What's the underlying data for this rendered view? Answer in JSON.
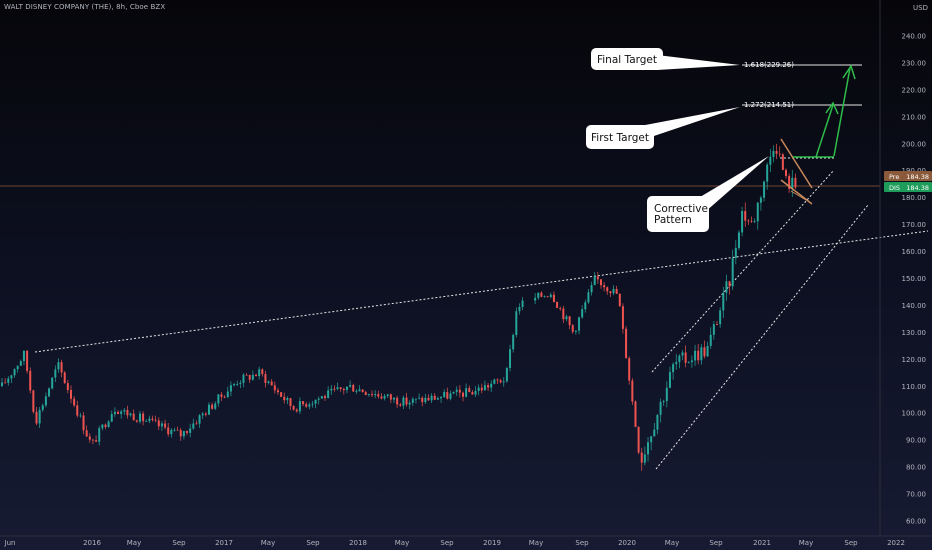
{
  "header": {
    "title": "WALT DISNEY COMPANY (THE), 8h, Cboe BZX"
  },
  "y_axis": {
    "currency": "USD",
    "ticks": [
      "240.00",
      "230.00",
      "220.00",
      "210.00",
      "200.00",
      "190.00",
      "180.00",
      "170.00",
      "160.00",
      "150.00",
      "140.00",
      "130.00",
      "120.00",
      "110.00",
      "100.00",
      "90.00",
      "80.00",
      "70.00",
      "60.00"
    ]
  },
  "x_axis": {
    "ticks": [
      "Jun",
      "2016",
      "May",
      "Sep",
      "2017",
      "May",
      "Sep",
      "2018",
      "May",
      "Sep",
      "2019",
      "May",
      "Sep",
      "2020",
      "May",
      "Sep",
      "2021",
      "May",
      "Sep",
      "2022"
    ]
  },
  "price_tags": {
    "pre_label": "Pre",
    "pre_value": "184.38",
    "last_label": "DIS",
    "last_value": "184.38"
  },
  "annotations": {
    "final_target": "Final Target",
    "first_target": "First Target",
    "corrective_line1": "Corrective",
    "corrective_line2": "Pattern",
    "fib_1618": "1.618(229.26)",
    "fib_1272": "1.272(214.51)"
  },
  "colors": {
    "up": "#26a69a",
    "down": "#ef5350",
    "wedge": "#c8895a",
    "arrow": "#2ebd4a",
    "last_price_line": "#9a5a3a"
  },
  "chart_data": {
    "type": "candlestick",
    "title": "WALT DISNEY COMPANY (THE), 8h, Cboe BZX",
    "ylim": [
      55,
      248
    ],
    "y_unit": "USD",
    "approx_close_path": [
      {
        "x": "2015-06",
        "y": 110
      },
      {
        "x": "2015-08",
        "y": 122
      },
      {
        "x": "2015-09",
        "y": 97
      },
      {
        "x": "2015-11",
        "y": 118
      },
      {
        "x": "2016-02",
        "y": 88
      },
      {
        "x": "2016-04",
        "y": 102
      },
      {
        "x": "2016-10",
        "y": 92
      },
      {
        "x": "2017-03",
        "y": 112
      },
      {
        "x": "2017-05",
        "y": 115
      },
      {
        "x": "2017-08",
        "y": 102
      },
      {
        "x": "2018-01",
        "y": 110
      },
      {
        "x": "2018-06",
        "y": 104
      },
      {
        "x": "2018-12",
        "y": 108
      },
      {
        "x": "2019-03",
        "y": 113
      },
      {
        "x": "2019-04",
        "y": 140
      },
      {
        "x": "2019-07",
        "y": 145
      },
      {
        "x": "2019-09",
        "y": 130
      },
      {
        "x": "2019-11",
        "y": 150
      },
      {
        "x": "2020-01",
        "y": 144
      },
      {
        "x": "2020-03",
        "y": 82
      },
      {
        "x": "2020-06",
        "y": 118
      },
      {
        "x": "2020-09",
        "y": 124
      },
      {
        "x": "2020-11",
        "y": 150
      },
      {
        "x": "2020-12",
        "y": 175
      },
      {
        "x": "2021-01",
        "y": 170
      },
      {
        "x": "2021-03",
        "y": 202
      },
      {
        "x": "2021-04",
        "y": 186
      },
      {
        "x": "2021-05",
        "y": 184.38
      }
    ],
    "last_price": 184.38,
    "fib_levels": [
      {
        "label": "1.618",
        "value": 229.26
      },
      {
        "label": "1.272",
        "value": 214.51
      }
    ]
  }
}
